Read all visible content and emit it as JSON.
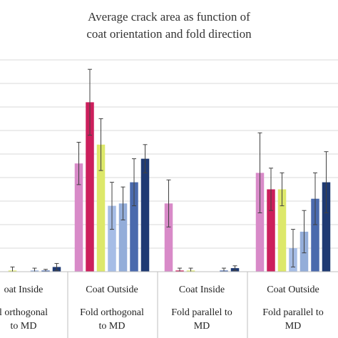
{
  "chart_data": {
    "type": "bar",
    "title_lines": [
      "Average crack area as function of",
      "coat orientation and fold direction"
    ],
    "groups": [
      {
        "coat": "oat Inside",
        "fold": [
          "l orthogonal",
          "to MD"
        ]
      },
      {
        "coat": "Coat Outside",
        "fold": [
          "Fold orthogonal",
          "to MD"
        ]
      },
      {
        "coat": "Coat Inside",
        "fold": [
          "Fold parallel to",
          "MD"
        ]
      },
      {
        "coat": "Coat Outside",
        "fold": [
          "Fold parallel to",
          "MD"
        ]
      }
    ],
    "ylim": [
      0,
      9
    ],
    "grid": true,
    "series": [
      {
        "color": "#d88ac8",
        "values": [
          0.05,
          4.6,
          2.9,
          4.2
        ],
        "errors": [
          0.2,
          0.9,
          1.0,
          1.7
        ]
      },
      {
        "color": "#cc1f5c",
        "values": [
          0.0,
          7.2,
          0.05,
          3.5
        ],
        "errors": [
          0.0,
          1.4,
          0.1,
          0.9
        ]
      },
      {
        "color": "#dde86a",
        "values": [
          0.05,
          5.4,
          0.05,
          3.5
        ],
        "errors": [
          0.15,
          1.1,
          0.1,
          0.7
        ]
      },
      {
        "color": "#a6bde6",
        "values": [
          0.0,
          2.8,
          0.0,
          1.0
        ],
        "errors": [
          0.0,
          1.0,
          0.0,
          0.8
        ]
      },
      {
        "color": "#93add9",
        "values": [
          0.05,
          2.9,
          0.0,
          1.7
        ],
        "errors": [
          0.1,
          0.7,
          0.0,
          0.9
        ]
      },
      {
        "color": "#4a6aad",
        "values": [
          0.05,
          3.8,
          0.05,
          3.1
        ],
        "errors": [
          0.05,
          1.0,
          0.1,
          1.1
        ]
      },
      {
        "color": "#1f3a73",
        "values": [
          0.2,
          4.8,
          0.15,
          3.8
        ],
        "errors": [
          0.15,
          0.6,
          0.1,
          1.3
        ]
      }
    ],
    "colors": {
      "grid": "#d9d9d9",
      "axis": "#bfbfbf",
      "errorbar": "#404040"
    }
  }
}
